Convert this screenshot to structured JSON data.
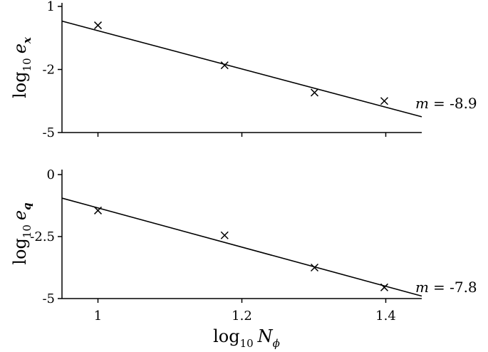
{
  "chart_data": [
    {
      "type": "scatter",
      "ylabel_base": "log",
      "ylabel_sub": "10",
      "ylabel_var": "e",
      "ylabel_var_sub": "x",
      "yticks": [
        1,
        -2,
        -5
      ],
      "ylim": [
        -5,
        1
      ],
      "xlim": [
        0.95,
        1.45
      ],
      "points": [
        {
          "x": 1.0,
          "y": 0.1
        },
        {
          "x": 1.176,
          "y": -1.8
        },
        {
          "x": 1.301,
          "y": -3.1
        },
        {
          "x": 1.398,
          "y": -3.5
        }
      ],
      "fit_line": {
        "x": [
          0.95,
          1.45
        ],
        "y": [
          0.3,
          -4.25
        ]
      },
      "annotation_var": "m",
      "annotation_value": "= -8.9"
    },
    {
      "type": "scatter",
      "ylabel_base": "log",
      "ylabel_sub": "10",
      "ylabel_var": "e",
      "ylabel_var_sub": "q",
      "xlabel_base": "log",
      "xlabel_sub": "10",
      "xlabel_var": "N",
      "xlabel_var_sub": "ϕ",
      "yticks": [
        0,
        -2.5,
        -5
      ],
      "ylim": [
        -5,
        0
      ],
      "xlim": [
        0.95,
        1.45
      ],
      "xticks": [
        1,
        1.2,
        1.4
      ],
      "xtick_labels": [
        "1",
        "1.2",
        "1.4"
      ],
      "points": [
        {
          "x": 1.0,
          "y": -1.45
        },
        {
          "x": 1.176,
          "y": -2.45
        },
        {
          "x": 1.301,
          "y": -3.75
        },
        {
          "x": 1.398,
          "y": -4.55
        }
      ],
      "fit_line": {
        "x": [
          0.95,
          1.45
        ],
        "y": [
          -0.95,
          -4.9
        ]
      },
      "annotation_var": "m",
      "annotation_value": "= -7.8"
    }
  ]
}
